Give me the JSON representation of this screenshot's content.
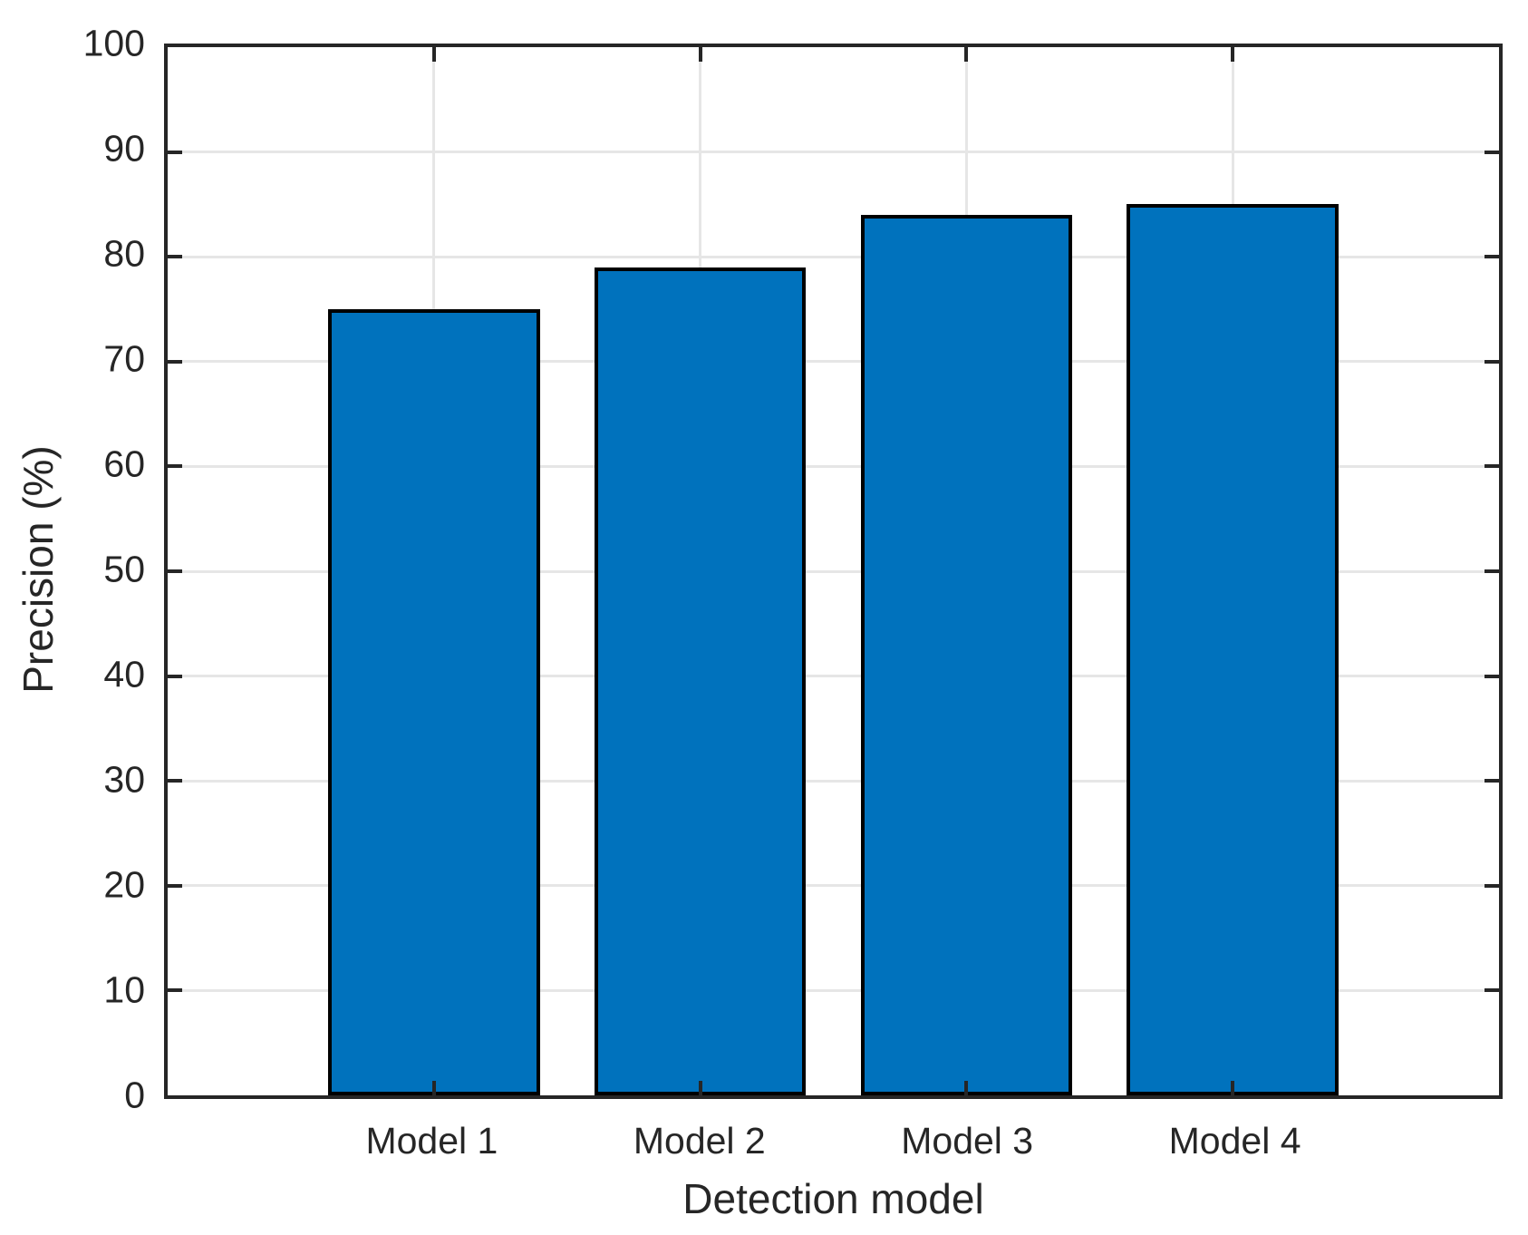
{
  "chart_data": {
    "type": "bar",
    "title": "",
    "xlabel": "Detection model",
    "ylabel": "Precision (%)",
    "categories": [
      "Model 1",
      "Model 2",
      "Model 3",
      "Model 4"
    ],
    "values": [
      75,
      79,
      84,
      85
    ],
    "ylim": [
      0,
      100
    ],
    "yticks": [
      0,
      10,
      20,
      30,
      40,
      50,
      60,
      70,
      80,
      90,
      100
    ],
    "grid": true,
    "legend": "none",
    "bar_color": "#0072BD",
    "bar_edge_color": "#000000",
    "grid_color": "#e6e6e6",
    "axis_color": "#262626",
    "background_color": "#ffffff"
  }
}
